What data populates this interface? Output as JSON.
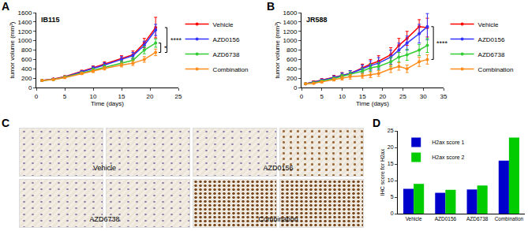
{
  "chart_data": [
    {
      "panel": "A",
      "type": "line",
      "title": "IB115",
      "xlabel": "Time (days)",
      "ylabel": "tumor volume (mm³)",
      "xlim": [
        0,
        25
      ],
      "xticks": [
        0,
        5,
        10,
        15,
        20,
        25
      ],
      "ylim": [
        0,
        1600
      ],
      "yticks": [
        0,
        200,
        400,
        600,
        800,
        1000,
        1200,
        1400,
        1600
      ],
      "legend": "right",
      "marker": "circle",
      "x": [
        1,
        3,
        5,
        8,
        10,
        12,
        15,
        17,
        19,
        21
      ],
      "series": [
        {
          "name": "Vehicle",
          "color": "#ff0000",
          "values": [
            150,
            180,
            230,
            340,
            420,
            500,
            620,
            700,
            950,
            1280
          ],
          "errors": [
            10,
            15,
            20,
            30,
            40,
            50,
            60,
            80,
            100,
            220
          ]
        },
        {
          "name": "AZD0156",
          "color": "#3333ff",
          "values": [
            150,
            175,
            225,
            330,
            410,
            480,
            600,
            680,
            900,
            1230
          ],
          "errors": [
            10,
            15,
            20,
            30,
            40,
            50,
            60,
            70,
            90,
            120
          ]
        },
        {
          "name": "AZD6738",
          "color": "#33cc33",
          "values": [
            150,
            170,
            220,
            310,
            380,
            440,
            520,
            580,
            800,
            950
          ],
          "errors": [
            10,
            15,
            20,
            25,
            35,
            40,
            50,
            60,
            80,
            90
          ]
        },
        {
          "name": "Combination",
          "color": "#ff8c1a",
          "values": [
            150,
            170,
            210,
            300,
            350,
            410,
            480,
            520,
            600,
            750
          ],
          "errors": [
            10,
            12,
            15,
            25,
            30,
            35,
            40,
            50,
            60,
            70
          ]
        }
      ],
      "brackets": [
        {
          "x": 23,
          "y0": 750,
          "y1": 1280,
          "label": "****"
        },
        {
          "x": 21.9,
          "y0": 750,
          "y1": 950,
          "label": "*"
        }
      ]
    },
    {
      "panel": "B",
      "type": "line",
      "title": "JR588",
      "xlabel": "Time (days)",
      "ylabel": "tumor volume (mm³)",
      "xlim": [
        0,
        35
      ],
      "xticks": [
        0,
        5,
        10,
        15,
        20,
        25,
        30,
        35
      ],
      "ylim": [
        0,
        1600
      ],
      "yticks": [
        0,
        200,
        400,
        600,
        800,
        1000,
        1200,
        1400,
        1600
      ],
      "legend": "right",
      "marker": "circle",
      "x": [
        1,
        3,
        5,
        8,
        10,
        12,
        15,
        17,
        19,
        22,
        24,
        26,
        29,
        31
      ],
      "series": [
        {
          "name": "Vehicle",
          "color": "#ff0000",
          "values": [
            80,
            120,
            160,
            220,
            270,
            300,
            420,
            500,
            560,
            700,
            900,
            1050,
            1300,
            1280
          ],
          "errors": [
            10,
            20,
            30,
            40,
            50,
            60,
            80,
            100,
            120,
            150,
            150,
            150,
            150,
            200
          ]
        },
        {
          "name": "AZD0156",
          "color": "#3333ff",
          "values": [
            80,
            110,
            150,
            210,
            260,
            300,
            400,
            470,
            520,
            650,
            800,
            950,
            1150,
            1300
          ],
          "errors": [
            10,
            20,
            30,
            40,
            50,
            60,
            80,
            100,
            120,
            150,
            150,
            150,
            200,
            280
          ]
        },
        {
          "name": "AZD6738",
          "color": "#33cc33",
          "values": [
            80,
            100,
            140,
            190,
            240,
            280,
            350,
            420,
            450,
            550,
            650,
            700,
            800,
            900
          ],
          "errors": [
            10,
            15,
            20,
            30,
            40,
            50,
            60,
            80,
            80,
            100,
            100,
            120,
            120,
            150
          ]
        },
        {
          "name": "Combination",
          "color": "#ff8c1a",
          "values": [
            80,
            90,
            120,
            170,
            200,
            230,
            250,
            270,
            300,
            400,
            450,
            400,
            550,
            600
          ],
          "errors": [
            10,
            15,
            20,
            30,
            40,
            50,
            50,
            60,
            60,
            80,
            80,
            80,
            100,
            100
          ]
        }
      ],
      "brackets": [
        {
          "x": 32.5,
          "y0": 600,
          "y1": 1300,
          "label": "****"
        }
      ]
    },
    {
      "panel": "D",
      "type": "bar",
      "ylabel": "IHC score for H2ax",
      "categories": [
        "Vehicle",
        "AZD0156",
        "AZD6738",
        "Combination"
      ],
      "ylim": [
        0,
        25
      ],
      "yticks": [
        0,
        5,
        10,
        15,
        20,
        25
      ],
      "legend": "top-left",
      "series": [
        {
          "name": "H2ax score 1",
          "color": "#0000cc",
          "values": [
            7.5,
            6.3,
            7.3,
            16
          ]
        },
        {
          "name": "H2ax score 2",
          "color": "#00cc00",
          "values": [
            9,
            7.2,
            8.5,
            23
          ]
        }
      ]
    }
  ],
  "images": {
    "panel": "C",
    "labels": [
      "Vehicle",
      "AZD0156",
      "AZD6738",
      "Combination"
    ]
  }
}
